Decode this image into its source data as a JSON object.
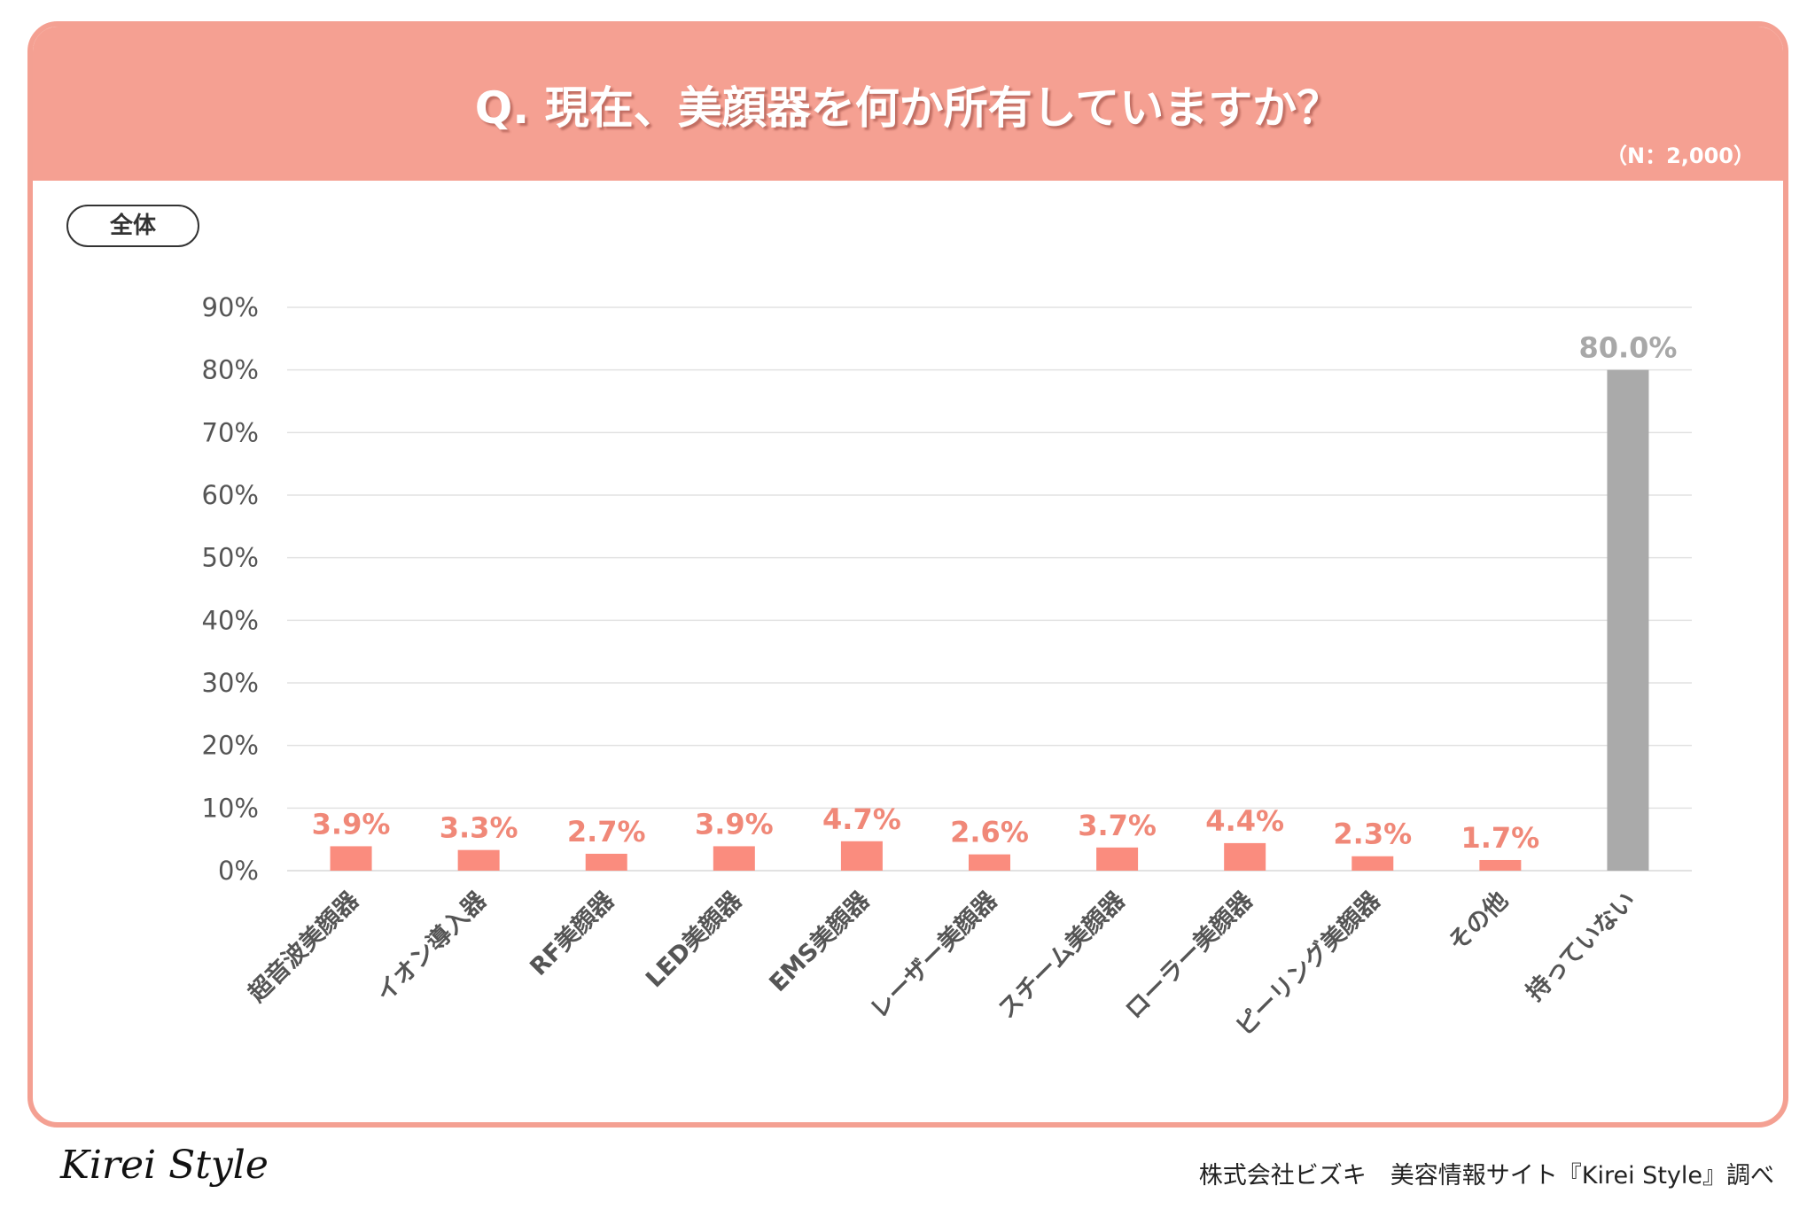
{
  "header": {
    "title": "Q. 現在、美顔器を何か所有していますか？",
    "sample": "（N：2,000）"
  },
  "segment_label": "全体",
  "footer": {
    "logo": "Kirei Style",
    "source": "株式会社ビズキ　美容情報サイト『Kirei Style』調べ"
  },
  "colors": {
    "header": "#F5A092",
    "bar": "#FA8C7E",
    "highlight_bar": "#AAAAAA",
    "label": "#F08878",
    "highlight_label": "#A8A8A8"
  },
  "chart_data": {
    "type": "bar",
    "title": "Q. 現在、美顔器を何か所有していますか？",
    "categories": [
      "超音波美顔器",
      "イオン導入器",
      "RF美顔器",
      "LED美顔器",
      "EMS美顔器",
      "レーザー美顔器",
      "スチーム美顔器",
      "ローラー美顔器",
      "ピーリング美顔器",
      "その他",
      "持っていない"
    ],
    "values": [
      3.9,
      3.3,
      2.7,
      3.9,
      4.7,
      2.6,
      3.7,
      4.4,
      2.3,
      1.7,
      80.0
    ],
    "data_labels": [
      "3.9%",
      "3.3%",
      "2.7%",
      "3.9%",
      "4.7%",
      "2.6%",
      "3.7%",
      "4.4%",
      "2.3%",
      "1.7%",
      "80.0%"
    ],
    "ylim": [
      0,
      90
    ],
    "yticks": [
      "0%",
      "10%",
      "20%",
      "30%",
      "40%",
      "50%",
      "60%",
      "70%",
      "80%",
      "90%"
    ],
    "grid": true,
    "unit": "%"
  }
}
